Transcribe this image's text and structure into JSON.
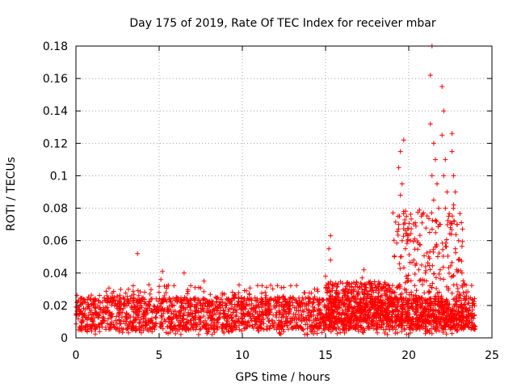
{
  "chart_data": {
    "type": "scatter",
    "title": "Day 175 of 2019, Rate Of TEC Index for receiver mbar",
    "xlabel": "GPS time / hours",
    "ylabel": "ROTI / TECUs",
    "xlim": [
      0,
      25
    ],
    "ylim": [
      0,
      0.18
    ],
    "x_ticks": [
      0,
      5,
      10,
      15,
      20,
      25
    ],
    "y_ticks": [
      0,
      0.02,
      0.04,
      0.06,
      0.08,
      0.1,
      0.12,
      0.14,
      0.16,
      0.18
    ],
    "x_tick_labels": [
      "0",
      "5",
      "10",
      "15",
      "20",
      "25"
    ],
    "y_tick_labels": [
      "0",
      "0.02",
      "0.04",
      "0.06",
      "0.08",
      "0.1",
      "0.12",
      "0.14",
      "0.16",
      "0.18"
    ],
    "grid": true,
    "marker": "+",
    "color": "#ff0000",
    "series": [
      {
        "name": "ROTI",
        "background": {
          "x_range": [
            0,
            24
          ],
          "typical_range": [
            0.005,
            0.025
          ]
        },
        "outliers": [
          [
            3.7,
            0.052
          ],
          [
            5.2,
            0.041
          ],
          [
            6.5,
            0.04
          ],
          [
            7.7,
            0.035
          ],
          [
            5.1,
            0.036
          ],
          [
            15.3,
            0.063
          ],
          [
            15.2,
            0.055
          ],
          [
            15.3,
            0.048
          ],
          [
            14.5,
            0.03
          ],
          [
            15.0,
            0.038
          ],
          [
            17.3,
            0.042
          ],
          [
            17.2,
            0.037
          ],
          [
            19.5,
            0.115
          ],
          [
            19.7,
            0.122
          ],
          [
            19.4,
            0.105
          ],
          [
            19.6,
            0.095
          ],
          [
            19.5,
            0.088
          ],
          [
            19.7,
            0.078
          ],
          [
            19.4,
            0.07
          ],
          [
            19.6,
            0.06
          ],
          [
            19.8,
            0.055
          ],
          [
            19.5,
            0.05
          ],
          [
            20.1,
            0.06
          ],
          [
            20.3,
            0.048
          ],
          [
            20.6,
            0.042
          ],
          [
            21.0,
            0.04
          ],
          [
            21.2,
            0.05
          ],
          [
            21.3,
            0.132
          ],
          [
            21.3,
            0.162
          ],
          [
            21.4,
            0.18
          ],
          [
            21.5,
            0.12
          ],
          [
            21.6,
            0.11
          ],
          [
            21.4,
            0.1
          ],
          [
            21.7,
            0.095
          ],
          [
            21.5,
            0.085
          ],
          [
            21.8,
            0.08
          ],
          [
            21.6,
            0.072
          ],
          [
            21.9,
            0.07
          ],
          [
            22.0,
            0.155
          ],
          [
            22.1,
            0.14
          ],
          [
            22.0,
            0.125
          ],
          [
            22.2,
            0.11
          ],
          [
            22.1,
            0.1
          ],
          [
            22.3,
            0.09
          ],
          [
            22.2,
            0.08
          ],
          [
            22.4,
            0.075
          ],
          [
            22.5,
            0.068
          ],
          [
            22.6,
            0.126
          ],
          [
            22.6,
            0.115
          ],
          [
            22.7,
            0.1
          ],
          [
            22.8,
            0.09
          ],
          [
            22.7,
            0.082
          ],
          [
            22.9,
            0.07
          ],
          [
            23.0,
            0.06
          ],
          [
            22.8,
            0.055
          ],
          [
            23.0,
            0.048
          ],
          [
            23.2,
            0.04
          ]
        ]
      }
    ]
  }
}
